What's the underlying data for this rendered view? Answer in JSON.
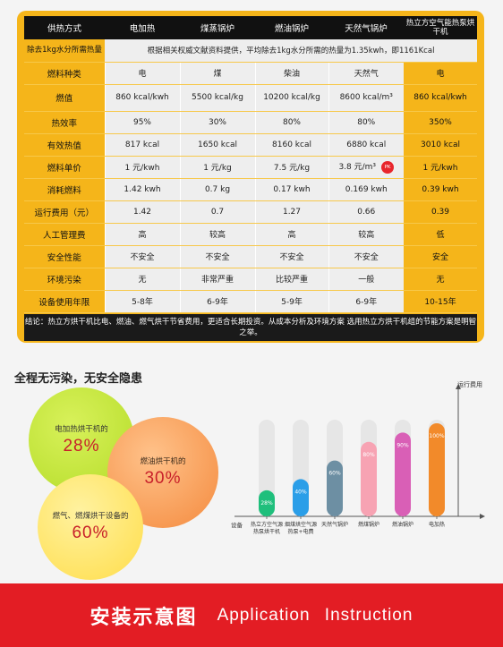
{
  "table": {
    "headers": [
      "供热方式",
      "电加热",
      "煤蒸锅炉",
      "燃油锅炉",
      "天然气锅炉",
      "热立方空气能热泵烘干机"
    ],
    "heat_note_label": "除去1kg水分所需热量",
    "heat_note_text": "根据相关权威文献资料提供，平均除去1kg水分所需的热量为1.35kwh，即1161Kcal",
    "rows": [
      {
        "label": "燃料种类",
        "cells": [
          "电",
          "煤",
          "柴油",
          "天然气",
          "电"
        ]
      },
      {
        "label": "燃值",
        "cells": [
          "860 kcal/kwh",
          "5500 kcal/kg",
          "10200 kcal/kg",
          "8600 kcal/m³",
          "860 kcal/kwh"
        ]
      },
      {
        "label": "热效率",
        "cells": [
          "95%",
          "30%",
          "80%",
          "80%",
          "350%"
        ]
      },
      {
        "label": "有效热值",
        "cells": [
          "817 kcal",
          "1650 kcal",
          "8160 kcal",
          "6880 kcal",
          "3010 kcal"
        ]
      },
      {
        "label": "燃料单价",
        "cells": [
          "1 元/kwh",
          "1 元/kg",
          "7.5 元/kg",
          "3.8 元/m³",
          "1 元/kwh"
        ]
      },
      {
        "label": "消耗燃料",
        "cells": [
          "1.42 kwh",
          "0.7 kg",
          "0.17 kwh",
          "0.169 kwh",
          "0.39 kwh"
        ]
      },
      {
        "label": "运行费用（元）",
        "cells": [
          "1.42",
          "0.7",
          "1.27",
          "0.66",
          "0.39"
        ]
      },
      {
        "label": "人工管理费",
        "cells": [
          "高",
          "较高",
          "高",
          "较高",
          "低"
        ]
      },
      {
        "label": "安全性能",
        "cells": [
          "不安全",
          "不安全",
          "不安全",
          "不安全",
          "安全"
        ]
      },
      {
        "label": "环境污染",
        "cells": [
          "无",
          "非常严重",
          "比较严重",
          "一般",
          "无"
        ]
      },
      {
        "label": "设备使用年限",
        "cells": [
          "5-8年",
          "6-9年",
          "5-9年",
          "6-9年",
          "10-15年"
        ]
      }
    ],
    "pk_badge": "PK",
    "conclusion": "结论：热立方烘干机比电、燃油、燃气烘干节省费用，更适合长期投资。从成本分析及环境方案  选用热立方烘干机组的节能方案是明智之举。"
  },
  "section_title": "全程无污染，无安全隐患",
  "bubbles": [
    {
      "label": "电加热烘干机的",
      "pct": "28%"
    },
    {
      "label": "燃油烘干机的",
      "pct": "30%"
    },
    {
      "label": "燃气、燃煤烘干设备的",
      "pct": "60%"
    }
  ],
  "chart_data": {
    "type": "bar",
    "ylabel": "运行费用",
    "xlabel": "设备",
    "categories": [
      "热立方空气源热泵烘干机",
      "烟煤烘空气源热泵+电费",
      "天然气锅炉",
      "燃煤锅炉",
      "燃油锅炉",
      "电加热"
    ],
    "values": [
      28,
      40,
      60,
      80,
      90,
      100
    ],
    "value_labels": [
      "28%",
      "40%",
      "60%",
      "80%",
      "90%",
      "100%"
    ],
    "ylim": [
      0,
      100
    ],
    "colors": [
      "#1fbf7c",
      "#2a9ee8",
      "#6d8fa3",
      "#f7a3b3",
      "#d95fb6",
      "#f28a2a"
    ],
    "track_color": "#e6e6e6"
  },
  "banner": {
    "cn": "安装示意图",
    "en": "Application Instruction"
  }
}
